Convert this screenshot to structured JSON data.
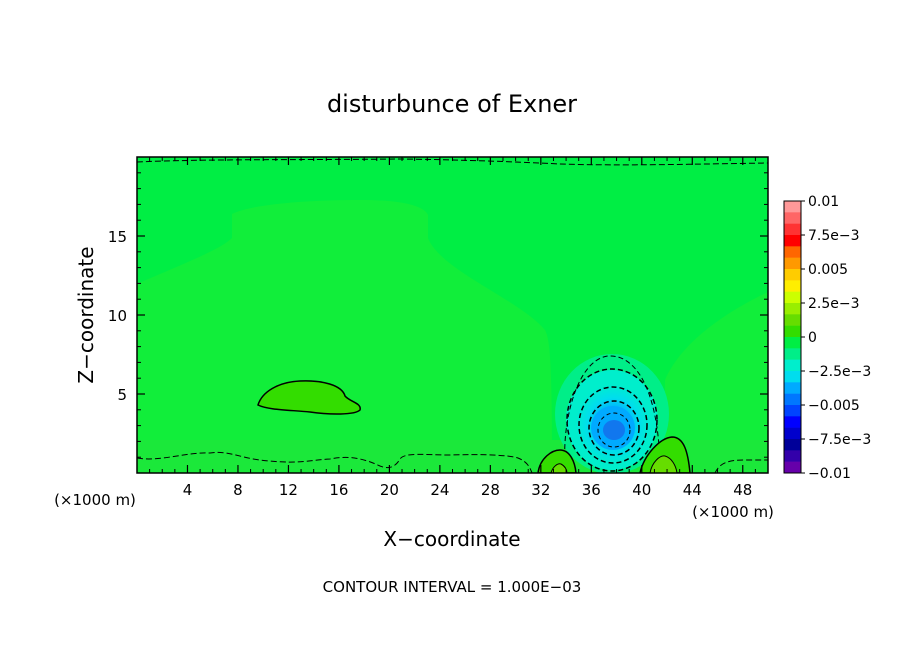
{
  "chart_data": {
    "type": "heatmap",
    "title": "disturbunce of Exner",
    "xlabel": "X−coordinate",
    "ylabel": "Z−coordinate",
    "x_unit_left": "(×1000 m)",
    "x_unit_right": "(×1000 m)",
    "xlim": [
      0,
      50
    ],
    "ylim": [
      0,
      20
    ],
    "x_ticks": [
      4,
      8,
      12,
      16,
      20,
      24,
      28,
      32,
      36,
      40,
      44,
      48
    ],
    "y_ticks": [
      5,
      10,
      15
    ],
    "footer": "CONTOUR INTERVAL = 1.000E−03",
    "contour_interval": 0.001,
    "colorbar": {
      "labels": [
        "0.01",
        "7.5e−3",
        "0.005",
        "2.5e−3",
        "0",
        "−2.5e−3",
        "−0.005",
        "−7.5e−3",
        "−0.01"
      ],
      "label_values": [
        0.01,
        0.0075,
        0.005,
        0.0025,
        0,
        -0.0025,
        -0.005,
        -0.0075,
        -0.01
      ],
      "colors_top_to_bottom": [
        "#ff9999",
        "#ff6666",
        "#ff3333",
        "#ff0000",
        "#ff6600",
        "#ff9900",
        "#ffcc00",
        "#ffee00",
        "#ccff00",
        "#99ee00",
        "#66dd00",
        "#33dd00",
        "#00ee44",
        "#00ee88",
        "#00eecc",
        "#00ddee",
        "#00aaff",
        "#0077ff",
        "#0044ff",
        "#0000ff",
        "#0000cc",
        "#000099",
        "#3300aa",
        "#6600aa"
      ]
    },
    "features": [
      {
        "kind": "positive-anomaly",
        "x_center": 13.5,
        "z_center": 4.7,
        "x_half": 4.5,
        "z_half": 0.9
      },
      {
        "kind": "negative-anomaly",
        "x_center": 37.8,
        "z_center": 2.7,
        "min_value": -0.0045
      },
      {
        "kind": "positive-anomaly",
        "x_center": 33.3,
        "z_center": 0.4
      },
      {
        "kind": "positive-anomaly",
        "x_center": 41.8,
        "z_center": 0.8
      }
    ]
  }
}
